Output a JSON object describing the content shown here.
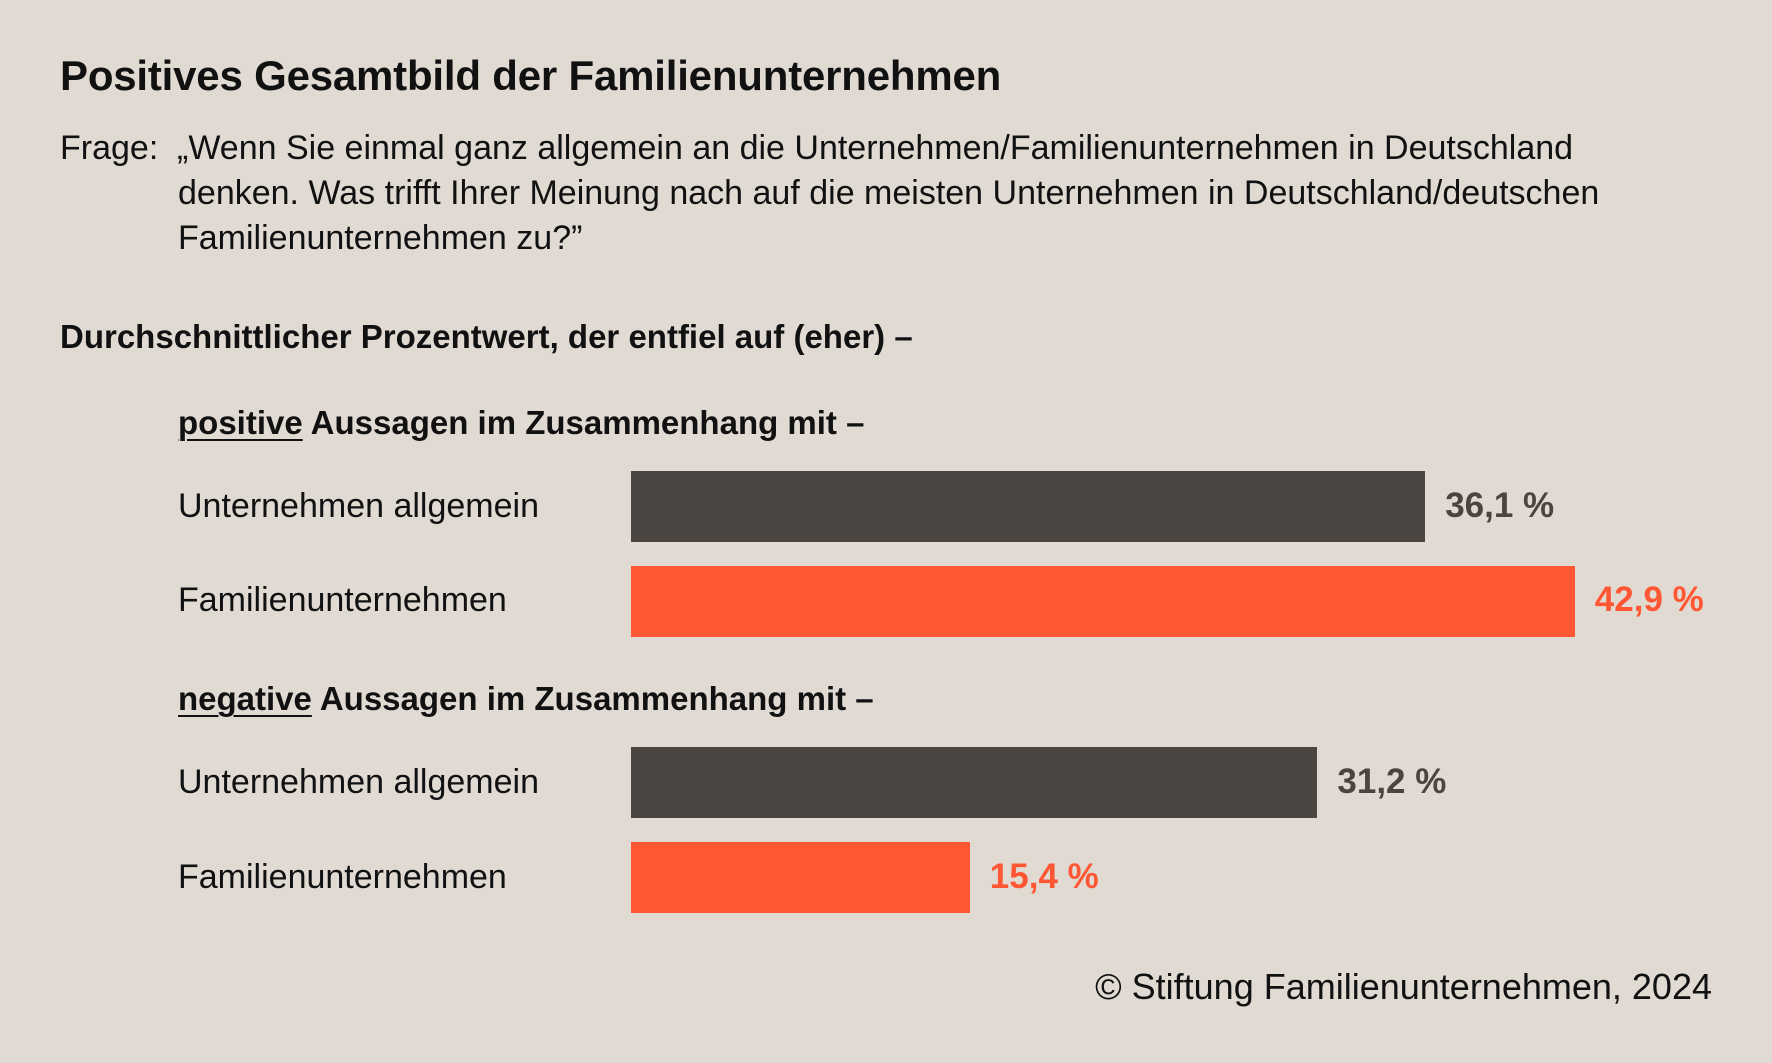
{
  "title": "Positives Gesamtbild der Familienunternehmen",
  "question": {
    "prefix": "Frage:",
    "text": "„Wenn Sie einmal ganz allgemein an die Unternehmen/Familienunternehmen in Deutschland denken. Was trifft Ihrer Meinung nach auf die meisten Unternehmen in Deutschland/deutschen Familienunternehmen zu?”"
  },
  "subtitle": "Durchschnittlicher Prozentwert, der entfiel auf (eher) –",
  "colors": {
    "background": "#e0dad3",
    "unternehmen_allgemein": "#4b4542",
    "familienunternehmen": "#ff5733"
  },
  "credit": "© Stiftung Familienunternehmen, 2024",
  "chart_data": {
    "type": "bar",
    "orientation": "horizontal",
    "unit": "%",
    "xlim": [
      0,
      50
    ],
    "groups": [
      {
        "keyword": "positive",
        "heading_rest": " Aussagen im Zusammenhang mit –",
        "bars": [
          {
            "label": "Unternehmen allgemein",
            "value": 36.1,
            "value_label": "36,1 %",
            "color": "#4b4542"
          },
          {
            "label": "Familienunternehmen",
            "value": 42.9,
            "value_label": "42,9 %",
            "color": "#ff5733"
          }
        ]
      },
      {
        "keyword": "negative",
        "heading_rest": " Aussagen im Zusammenhang mit –",
        "bars": [
          {
            "label": "Unternehmen allgemein",
            "value": 31.2,
            "value_label": "31,2 %",
            "color": "#4b4542"
          },
          {
            "label": "Familienunternehmen",
            "value": 15.4,
            "value_label": "15,4 %",
            "color": "#ff5733"
          }
        ]
      }
    ]
  }
}
